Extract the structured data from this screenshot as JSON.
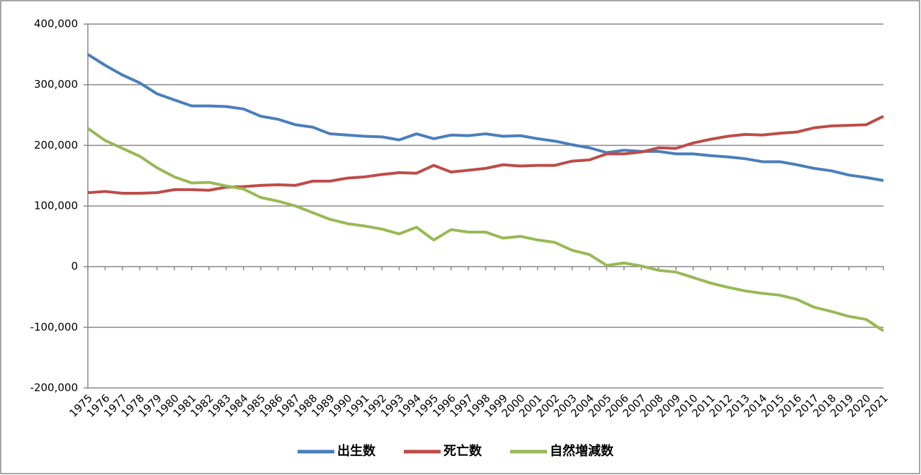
{
  "chart_data": {
    "type": "line",
    "x": [
      1975,
      1976,
      1977,
      1978,
      1979,
      1980,
      1981,
      1982,
      1983,
      1984,
      1985,
      1986,
      1987,
      1988,
      1989,
      1990,
      1991,
      1992,
      1993,
      1994,
      1995,
      1996,
      1997,
      1998,
      1999,
      2000,
      2001,
      2002,
      2003,
      2004,
      2005,
      2006,
      2007,
      2008,
      2009,
      2010,
      2011,
      2012,
      2013,
      2014,
      2015,
      2016,
      2017,
      2018,
      2019,
      2020,
      2021
    ],
    "xlim": [
      1975,
      2021
    ],
    "ylim": [
      -200000,
      400000
    ],
    "yticks": [
      {
        "value": -200000,
        "label": "-200,000"
      },
      {
        "value": -100000,
        "label": "-100,000"
      },
      0,
      {
        "value": 100000,
        "label": "100,000"
      },
      {
        "value": 200000,
        "label": "200,000"
      },
      {
        "value": 300000,
        "label": "300,000"
      },
      {
        "value": 400000,
        "label": "400,000"
      }
    ],
    "grid": true,
    "legend": "bottom",
    "series": [
      {
        "name": "出生数",
        "color": "#4a7ebb",
        "values": [
          350000,
          332000,
          316000,
          303000,
          285000,
          275000,
          265000,
          265000,
          264000,
          260000,
          248000,
          243000,
          234000,
          230000,
          219000,
          217000,
          215000,
          214000,
          209000,
          219000,
          211000,
          217000,
          216000,
          219000,
          215000,
          216000,
          211000,
          207000,
          201000,
          196000,
          188000,
          192000,
          190000,
          190000,
          186000,
          186000,
          183000,
          181000,
          178000,
          173000,
          173000,
          168000,
          162000,
          158000,
          151000,
          147000,
          142000
        ]
      },
      {
        "name": "死亡数",
        "color": "#be4b48",
        "values": [
          122000,
          124000,
          121000,
          121000,
          122000,
          127000,
          127000,
          126000,
          131000,
          132000,
          134000,
          135000,
          134000,
          141000,
          141000,
          146000,
          148000,
          152000,
          155000,
          154000,
          167000,
          156000,
          159000,
          162000,
          168000,
          166000,
          167000,
          167000,
          174000,
          176000,
          186000,
          186000,
          189000,
          196000,
          195000,
          204000,
          210000,
          215000,
          218000,
          217000,
          220000,
          222000,
          229000,
          232000,
          233000,
          234000,
          248000
        ]
      },
      {
        "name": "自然増減数",
        "color": "#98b954",
        "values": [
          228000,
          208000,
          195000,
          182000,
          163000,
          148000,
          138000,
          139000,
          133000,
          128000,
          114000,
          108000,
          100000,
          89000,
          78000,
          71000,
          67000,
          62000,
          54000,
          65000,
          44000,
          61000,
          57000,
          57000,
          47000,
          50000,
          44000,
          40000,
          27000,
          20000,
          2000,
          6000,
          1000,
          -6000,
          -9000,
          -18000,
          -27000,
          -34000,
          -40000,
          -44000,
          -47000,
          -54000,
          -67000,
          -74000,
          -82000,
          -87000,
          -106000
        ]
      }
    ]
  }
}
